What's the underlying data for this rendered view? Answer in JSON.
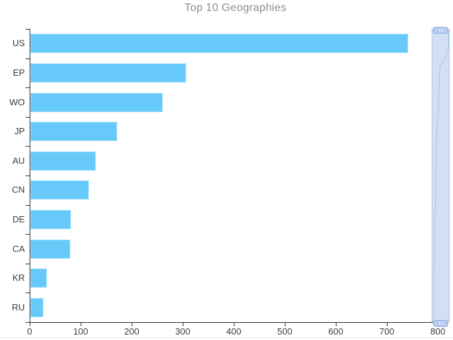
{
  "chart_data": {
    "type": "bar",
    "orientation": "horizontal",
    "title": "Top 10 Geographies",
    "categories": [
      "US",
      "EP",
      "WO",
      "JP",
      "AU",
      "CN",
      "DE",
      "CA",
      "KR",
      "RU"
    ],
    "values": [
      740,
      305,
      260,
      170,
      128,
      115,
      80,
      78,
      32,
      25
    ],
    "xlabel": "",
    "ylabel": "",
    "xlim": [
      0,
      800
    ],
    "x_ticks": [
      0,
      100,
      200,
      300,
      400,
      500,
      600,
      700,
      800
    ],
    "grid": false,
    "legend": false,
    "title_color": "#8f8f8f",
    "bar_color": "#66c9fa",
    "bar_border_color": "#aee3ff",
    "axis_color": "#2f2f2f",
    "tick_label_color": "#3c3c3c"
  },
  "navigator": {
    "role": "vertical scroll brush over full value range",
    "track_fill": "#c7d6f2",
    "track_border": "#a8bee6",
    "handle_fill": "#b9cdf1",
    "handle_border": "#8fafdf",
    "curve_color": "#7f9fd6"
  }
}
